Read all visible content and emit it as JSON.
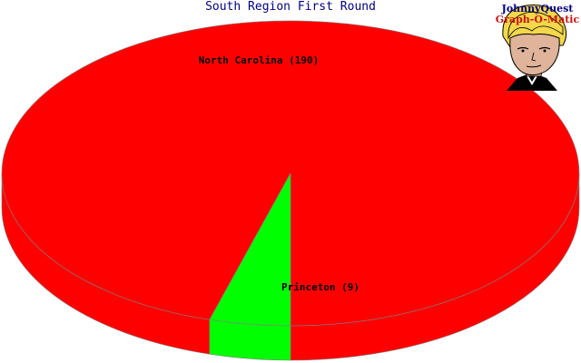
{
  "chart_data": {
    "type": "pie",
    "title": "South Region First Round",
    "style": "3d",
    "slices": [
      {
        "label": "North Carolina",
        "value": 190,
        "display": "North Carolina (190)",
        "color": "#ff0000"
      },
      {
        "label": "Princeton",
        "value": 9,
        "display": "Princeton (9)",
        "color": "#00ff00"
      }
    ]
  },
  "logo": {
    "line1": "JohnnyQuest",
    "line2": "Graph-O-Matic"
  }
}
